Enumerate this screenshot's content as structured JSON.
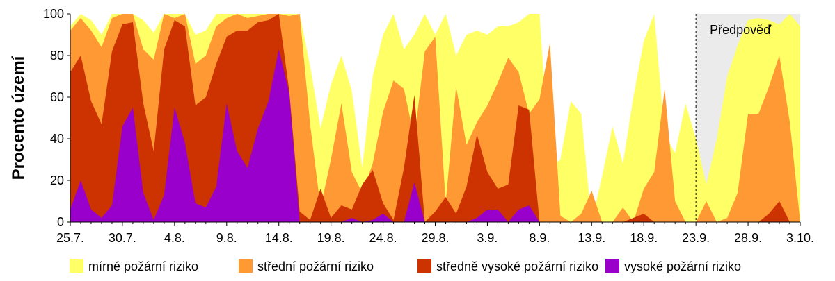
{
  "chart_data": {
    "type": "area",
    "stacked": false,
    "ylabel": "Procento území",
    "ylim": [
      0,
      100
    ],
    "yticks": [
      0,
      20,
      40,
      60,
      80,
      100
    ],
    "x_start": "2025-07-25",
    "xlim": [
      "2025-07-25",
      "2025-10-03"
    ],
    "xticks": [
      "25.7.",
      "30.7.",
      "4.8.",
      "9.8.",
      "14.8.",
      "19.8.",
      "24.8.",
      "29.8.",
      "3.9.",
      "8.9.",
      "13.9.",
      "18.9.",
      "23.9.",
      "28.9.",
      "3.10."
    ],
    "forecast": {
      "label": "Předpověď",
      "start": "2025-09-23",
      "shaded": true
    },
    "legend": {
      "position": "bottom"
    },
    "series": [
      {
        "name": "mírné požární riziko",
        "color": "#ffff66",
        "values": [
          94,
          100,
          97,
          90,
          100,
          100,
          100,
          97,
          91,
          100,
          100,
          100,
          90,
          92,
          100,
          100,
          100,
          100,
          100,
          100,
          100,
          100,
          100,
          75,
          45,
          66,
          80,
          63,
          26,
          70,
          90,
          100,
          83,
          90,
          100,
          90,
          100,
          80,
          90,
          92,
          90,
          94,
          94,
          96,
          100,
          100,
          26,
          30,
          58,
          52,
          0,
          22,
          46,
          28,
          60,
          87,
          100,
          42,
          33,
          57,
          40,
          18,
          40,
          70,
          85,
          97,
          98,
          97,
          95,
          100,
          94
        ]
      },
      {
        "name": "střední požární riziko",
        "color": "#ff9933",
        "values": [
          92,
          98,
          92,
          84,
          98,
          100,
          100,
          83,
          78,
          100,
          98,
          100,
          76,
          80,
          94,
          98,
          100,
          98,
          99,
          100,
          100,
          99,
          100,
          47,
          7,
          30,
          57,
          24,
          14,
          28,
          53,
          68,
          64,
          40,
          82,
          89,
          9,
          65,
          37,
          48,
          56,
          67,
          79,
          72,
          52,
          59,
          86,
          3,
          0,
          4,
          15,
          0,
          0,
          7,
          0,
          16,
          24,
          64,
          10,
          0,
          0,
          10,
          0,
          2,
          14,
          52,
          52,
          65,
          80,
          48,
          0
        ]
      },
      {
        "name": "středně vysoké požární riziko",
        "color": "#cc3300",
        "values": [
          72,
          80,
          58,
          47,
          82,
          95,
          96,
          57,
          34,
          83,
          97,
          94,
          56,
          60,
          76,
          89,
          92,
          92,
          96,
          97,
          100,
          63,
          5,
          1,
          16,
          2,
          8,
          6,
          18,
          25,
          9,
          1,
          26,
          61,
          0,
          5,
          12,
          4,
          17,
          42,
          24,
          16,
          18,
          56,
          54,
          0,
          0,
          0,
          0,
          0,
          0,
          0,
          0,
          0,
          2,
          4,
          0,
          0,
          0,
          0,
          0,
          0,
          0,
          0,
          0,
          0,
          0,
          4,
          10,
          0,
          0
        ]
      },
      {
        "name": "vysoké požární riziko",
        "color": "#9900cc",
        "values": [
          6,
          20,
          6,
          2,
          8,
          46,
          55,
          14,
          1,
          13,
          55,
          38,
          9,
          7,
          17,
          57,
          34,
          26,
          45,
          58,
          83,
          62,
          0,
          0,
          0,
          0,
          0,
          2,
          0,
          1,
          4,
          0,
          0,
          19,
          0,
          0,
          0,
          0,
          0,
          2,
          6,
          6,
          0,
          6,
          8,
          0,
          0,
          0,
          0,
          0,
          0,
          0,
          0,
          0,
          0,
          0,
          0,
          0,
          0,
          0,
          0,
          0,
          0,
          0,
          0,
          0,
          0,
          0,
          0,
          0,
          0
        ]
      }
    ]
  }
}
